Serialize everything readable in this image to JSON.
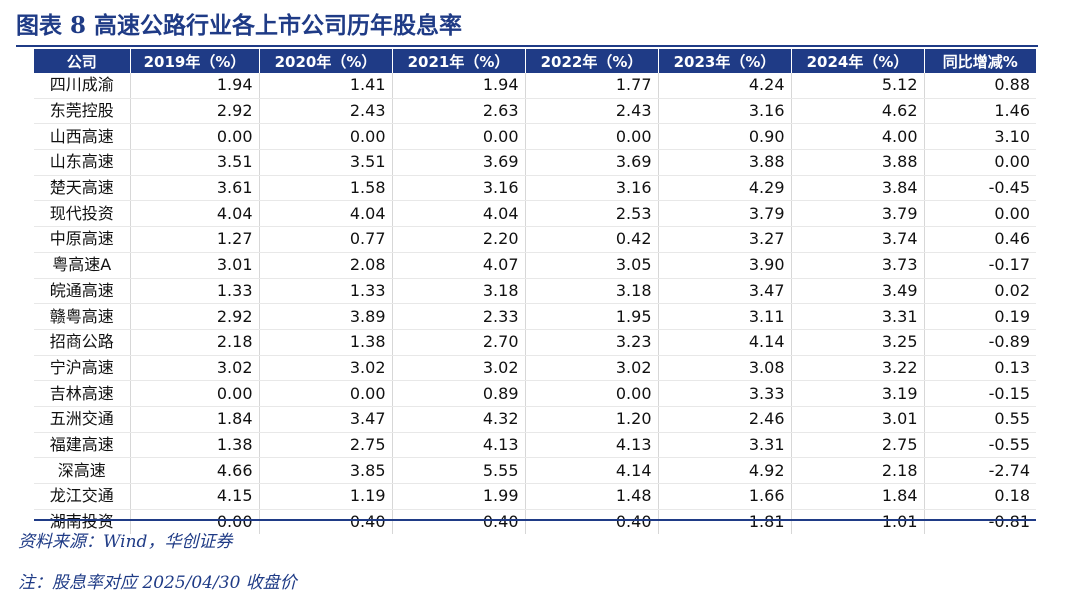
{
  "title": "图表 8  高速公路行业各上市公司历年股息率",
  "table": {
    "headers": [
      "公司",
      "2019年（%）",
      "2020年（%）",
      "2021年（%）",
      "2022年（%）",
      "2023年（%）",
      "2024年（%）",
      "同比增减%"
    ],
    "rows": [
      [
        "四川成渝",
        "1.94",
        "1.41",
        "1.94",
        "1.77",
        "4.24",
        "5.12",
        "0.88"
      ],
      [
        "东莞控股",
        "2.92",
        "2.43",
        "2.63",
        "2.43",
        "3.16",
        "4.62",
        "1.46"
      ],
      [
        "山西高速",
        "0.00",
        "0.00",
        "0.00",
        "0.00",
        "0.90",
        "4.00",
        "3.10"
      ],
      [
        "山东高速",
        "3.51",
        "3.51",
        "3.69",
        "3.69",
        "3.88",
        "3.88",
        "0.00"
      ],
      [
        "楚天高速",
        "3.61",
        "1.58",
        "3.16",
        "3.16",
        "4.29",
        "3.84",
        "-0.45"
      ],
      [
        "现代投资",
        "4.04",
        "4.04",
        "4.04",
        "2.53",
        "3.79",
        "3.79",
        "0.00"
      ],
      [
        "中原高速",
        "1.27",
        "0.77",
        "2.20",
        "0.42",
        "3.27",
        "3.74",
        "0.46"
      ],
      [
        "粤高速A",
        "3.01",
        "2.08",
        "4.07",
        "3.05",
        "3.90",
        "3.73",
        "-0.17"
      ],
      [
        "皖通高速",
        "1.33",
        "1.33",
        "3.18",
        "3.18",
        "3.47",
        "3.49",
        "0.02"
      ],
      [
        "赣粤高速",
        "2.92",
        "3.89",
        "2.33",
        "1.95",
        "3.11",
        "3.31",
        "0.19"
      ],
      [
        "招商公路",
        "2.18",
        "1.38",
        "2.70",
        "3.23",
        "4.14",
        "3.25",
        "-0.89"
      ],
      [
        "宁沪高速",
        "3.02",
        "3.02",
        "3.02",
        "3.02",
        "3.08",
        "3.22",
        "0.13"
      ],
      [
        "吉林高速",
        "0.00",
        "0.00",
        "0.89",
        "0.00",
        "3.33",
        "3.19",
        "-0.15"
      ],
      [
        "五洲交通",
        "1.84",
        "3.47",
        "4.32",
        "1.20",
        "2.46",
        "3.01",
        "0.55"
      ],
      [
        "福建高速",
        "1.38",
        "2.75",
        "4.13",
        "4.13",
        "3.31",
        "2.75",
        "-0.55"
      ],
      [
        "深高速",
        "4.66",
        "3.85",
        "5.55",
        "4.14",
        "4.92",
        "2.18",
        "-2.74"
      ],
      [
        "龙江交通",
        "4.15",
        "1.19",
        "1.99",
        "1.48",
        "1.66",
        "1.84",
        "0.18"
      ],
      [
        "湖南投资",
        "0.00",
        "0.40",
        "0.40",
        "0.40",
        "1.81",
        "1.01",
        "-0.81"
      ]
    ]
  },
  "source": "资料来源：Wind，华创证券",
  "note": "注：股息率对应 2025/04/30 收盘价",
  "colors": {
    "accent": "#1f3b86",
    "header_text": "#ffffff"
  }
}
